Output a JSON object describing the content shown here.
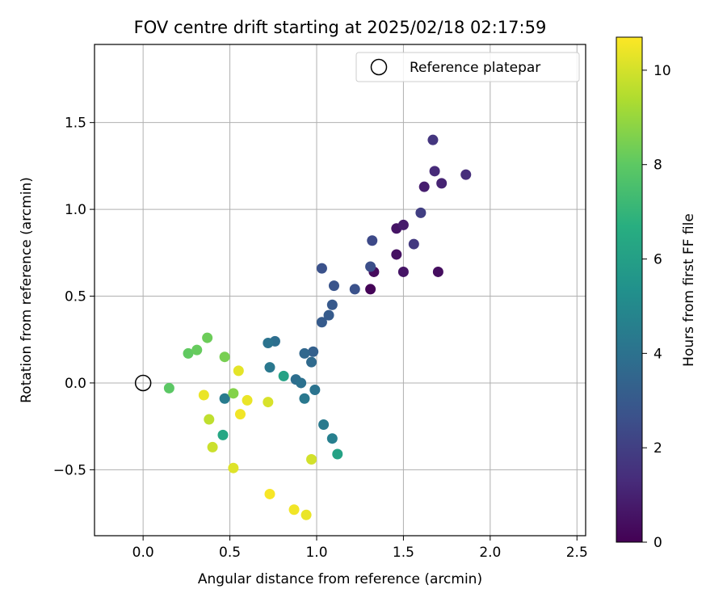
{
  "chart_data": {
    "type": "scatter",
    "title": "FOV centre drift starting at 2025/02/18 02:17:59",
    "xlabel": "Angular distance from reference (arcmin)",
    "ylabel": "Rotation from reference (arcmin)",
    "xlim": [
      -0.28,
      2.55
    ],
    "ylim": [
      -0.88,
      1.95
    ],
    "x_ticks": [
      0.0,
      0.5,
      1.0,
      1.5,
      2.0,
      2.5
    ],
    "x_tick_labels": [
      "0.0",
      "0.5",
      "1.0",
      "1.5",
      "2.0",
      "2.5"
    ],
    "y_ticks": [
      -0.5,
      0.0,
      0.5,
      1.0,
      1.5
    ],
    "y_tick_labels": [
      "−0.5",
      "0.0",
      "0.5",
      "1.0",
      "1.5"
    ],
    "grid": true,
    "legend": {
      "placement": "top-right",
      "label": "Reference platepar"
    },
    "reference_point": {
      "x": 0.0,
      "y": 0.0
    },
    "colorbar": {
      "label": "Hours from first FF file",
      "range": [
        0,
        10.7
      ],
      "ticks": [
        0,
        2,
        4,
        6,
        8,
        10
      ],
      "tick_labels": [
        "0",
        "2",
        "4",
        "6",
        "8",
        "10"
      ],
      "colormap": "viridis"
    },
    "points": [
      {
        "x": 1.31,
        "y": 0.54,
        "c": 0.1
      },
      {
        "x": 1.33,
        "y": 0.64,
        "c": 0.3
      },
      {
        "x": 1.46,
        "y": 0.74,
        "c": 0.5
      },
      {
        "x": 1.5,
        "y": 0.64,
        "c": 0.6
      },
      {
        "x": 1.7,
        "y": 0.64,
        "c": 0.4
      },
      {
        "x": 1.46,
        "y": 0.89,
        "c": 0.6
      },
      {
        "x": 1.5,
        "y": 0.91,
        "c": 0.8
      },
      {
        "x": 1.62,
        "y": 1.13,
        "c": 0.9
      },
      {
        "x": 1.72,
        "y": 1.15,
        "c": 1.1
      },
      {
        "x": 1.68,
        "y": 1.22,
        "c": 1.3
      },
      {
        "x": 1.86,
        "y": 1.2,
        "c": 1.4
      },
      {
        "x": 1.67,
        "y": 1.4,
        "c": 1.7
      },
      {
        "x": 1.56,
        "y": 0.8,
        "c": 1.8
      },
      {
        "x": 1.6,
        "y": 0.98,
        "c": 2.0
      },
      {
        "x": 1.32,
        "y": 0.82,
        "c": 2.4
      },
      {
        "x": 1.31,
        "y": 0.67,
        "c": 2.6
      },
      {
        "x": 1.22,
        "y": 0.54,
        "c": 2.7
      },
      {
        "x": 1.03,
        "y": 0.66,
        "c": 2.7
      },
      {
        "x": 1.1,
        "y": 0.56,
        "c": 2.8
      },
      {
        "x": 1.09,
        "y": 0.45,
        "c": 3.0
      },
      {
        "x": 1.07,
        "y": 0.39,
        "c": 3.1
      },
      {
        "x": 1.03,
        "y": 0.35,
        "c": 3.1
      },
      {
        "x": 0.98,
        "y": 0.18,
        "c": 3.3
      },
      {
        "x": 0.93,
        "y": 0.17,
        "c": 3.6
      },
      {
        "x": 0.97,
        "y": 0.12,
        "c": 3.7
      },
      {
        "x": 0.76,
        "y": 0.24,
        "c": 3.9
      },
      {
        "x": 0.72,
        "y": 0.23,
        "c": 4.1
      },
      {
        "x": 0.73,
        "y": 0.09,
        "c": 4.3
      },
      {
        "x": 0.88,
        "y": 0.02,
        "c": 3.9
      },
      {
        "x": 0.91,
        "y": 0.0,
        "c": 4.0
      },
      {
        "x": 0.99,
        "y": -0.04,
        "c": 4.1
      },
      {
        "x": 0.93,
        "y": -0.09,
        "c": 4.3
      },
      {
        "x": 0.47,
        "y": -0.09,
        "c": 4.5
      },
      {
        "x": 1.04,
        "y": -0.24,
        "c": 4.4
      },
      {
        "x": 1.09,
        "y": -0.32,
        "c": 4.6
      },
      {
        "x": 0.81,
        "y": 0.04,
        "c": 6.2
      },
      {
        "x": 1.12,
        "y": -0.41,
        "c": 6.2
      },
      {
        "x": 0.46,
        "y": -0.3,
        "c": 6.4
      },
      {
        "x": 0.15,
        "y": -0.03,
        "c": 8.0
      },
      {
        "x": 0.26,
        "y": 0.17,
        "c": 8.1
      },
      {
        "x": 0.31,
        "y": 0.19,
        "c": 8.2
      },
      {
        "x": 0.37,
        "y": 0.26,
        "c": 8.3
      },
      {
        "x": 0.47,
        "y": 0.15,
        "c": 8.5
      },
      {
        "x": 0.52,
        "y": -0.06,
        "c": 8.7
      },
      {
        "x": 0.38,
        "y": -0.21,
        "c": 9.7
      },
      {
        "x": 0.4,
        "y": -0.37,
        "c": 9.9
      },
      {
        "x": 0.52,
        "y": -0.49,
        "c": 10.2
      },
      {
        "x": 0.35,
        "y": -0.07,
        "c": 10.4
      },
      {
        "x": 0.55,
        "y": 0.07,
        "c": 10.3
      },
      {
        "x": 0.56,
        "y": -0.18,
        "c": 10.5
      },
      {
        "x": 0.6,
        "y": -0.1,
        "c": 10.4
      },
      {
        "x": 0.72,
        "y": -0.11,
        "c": 10.1
      },
      {
        "x": 0.97,
        "y": -0.44,
        "c": 10.0
      },
      {
        "x": 0.73,
        "y": -0.64,
        "c": 10.6
      },
      {
        "x": 0.87,
        "y": -0.73,
        "c": 10.5
      },
      {
        "x": 0.94,
        "y": -0.76,
        "c": 10.4
      }
    ]
  }
}
